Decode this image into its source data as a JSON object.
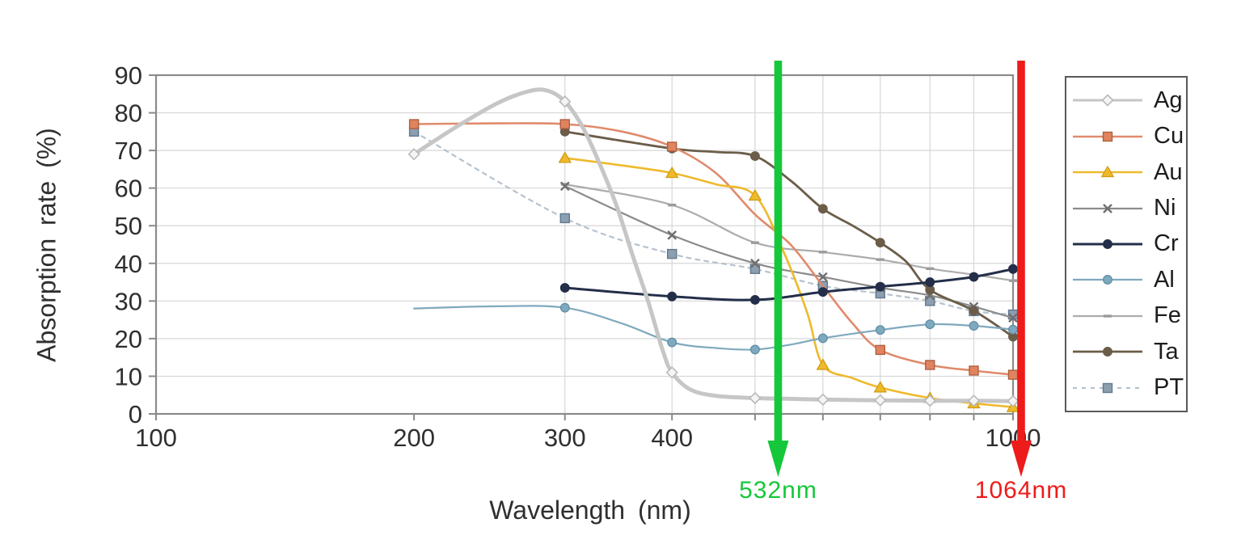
{
  "chart_data": {
    "type": "line",
    "title": "",
    "xlabel": "Wavelength (nm)",
    "ylabel": "Absorption rate (%)",
    "x_scale": "log",
    "x_range": [
      100,
      1000
    ],
    "y_range": [
      0,
      90
    ],
    "x_tick_labels": [
      100,
      200,
      300,
      400,
      1000
    ],
    "x_ticks": [
      100,
      200,
      300,
      400,
      500,
      600,
      700,
      800,
      900,
      1000
    ],
    "x_gridlines": [
      300,
      400,
      500,
      600,
      700,
      800,
      900
    ],
    "y_ticks": [
      0,
      10,
      20,
      30,
      40,
      50,
      60,
      70,
      80,
      90
    ],
    "grid": true,
    "legend_position": "right",
    "legend_items": [
      "Ag",
      "Cu",
      "Au",
      "Ni",
      "Cr",
      "Al",
      "Fe",
      "Ta",
      "PT"
    ],
    "series": [
      {
        "name": "Ag",
        "color": "#c6c6c6",
        "line_width": 5,
        "marker": "diamond",
        "marker_fill": "#f4f4f4",
        "marker_stroke": "#b9b9b9",
        "points": [
          [
            200,
            69
          ],
          [
            225,
            76.5
          ],
          [
            250,
            82.5
          ],
          [
            270,
            85.5
          ],
          [
            285,
            86
          ],
          [
            300,
            83
          ],
          [
            315,
            76
          ],
          [
            330,
            66
          ],
          [
            345,
            55
          ],
          [
            360,
            42
          ],
          [
            375,
            30
          ],
          [
            390,
            17
          ],
          [
            400,
            11
          ],
          [
            420,
            6.5
          ],
          [
            450,
            4.8
          ],
          [
            500,
            4.2
          ],
          [
            550,
            4
          ],
          [
            600,
            3.8
          ],
          [
            700,
            3.6
          ],
          [
            800,
            3.5
          ],
          [
            900,
            3.5
          ],
          [
            1000,
            3.4
          ]
        ],
        "marker_at": [
          200,
          300,
          400,
          500,
          600,
          700,
          800,
          900,
          1000
        ]
      },
      {
        "name": "Cu",
        "color": "#e08a6c",
        "line_width": 2.6,
        "marker": "square",
        "marker_fill": "#e0845f",
        "marker_stroke": "#b05f40",
        "points": [
          [
            200,
            77
          ],
          [
            250,
            77.2
          ],
          [
            300,
            77
          ],
          [
            350,
            75
          ],
          [
            400,
            71
          ],
          [
            450,
            64
          ],
          [
            500,
            53
          ],
          [
            550,
            45
          ],
          [
            600,
            34
          ],
          [
            650,
            24
          ],
          [
            700,
            17
          ],
          [
            800,
            13
          ],
          [
            900,
            11.5
          ],
          [
            1000,
            10.4
          ]
        ],
        "marker_at": [
          200,
          300,
          400,
          700,
          800,
          900,
          1000
        ]
      },
      {
        "name": "Au",
        "color": "#eeb92b",
        "line_width": 2.6,
        "marker": "triangle",
        "marker_fill": "#eeb92b",
        "marker_stroke": "#cf9a12",
        "points": [
          [
            300,
            68
          ],
          [
            350,
            66
          ],
          [
            400,
            64
          ],
          [
            450,
            61
          ],
          [
            500,
            58
          ],
          [
            540,
            43
          ],
          [
            575,
            27
          ],
          [
            600,
            13
          ],
          [
            650,
            9.5
          ],
          [
            700,
            7
          ],
          [
            800,
            4.2
          ],
          [
            900,
            2.8
          ],
          [
            1000,
            1.8
          ]
        ],
        "marker_at": [
          300,
          400,
          500,
          600,
          700,
          800,
          900,
          1000
        ]
      },
      {
        "name": "Ni",
        "color": "#8b8b8b",
        "line_width": 2.2,
        "marker": "x",
        "marker_fill": "none",
        "marker_stroke": "#6f6f6f",
        "points": [
          [
            300,
            60.5
          ],
          [
            400,
            47.5
          ],
          [
            500,
            40
          ],
          [
            600,
            36.4
          ],
          [
            700,
            33.5
          ],
          [
            800,
            31.5
          ],
          [
            900,
            28.5
          ],
          [
            1000,
            25.5
          ]
        ],
        "marker_at": [
          300,
          400,
          500,
          600,
          700,
          800,
          900,
          1000
        ]
      },
      {
        "name": "Cr",
        "color": "#232e49",
        "line_width": 3,
        "marker": "circle",
        "marker_fill": "#232e49",
        "marker_stroke": "#232e49",
        "points": [
          [
            300,
            33.5
          ],
          [
            400,
            31.2
          ],
          [
            500,
            30.3
          ],
          [
            600,
            32.4
          ],
          [
            700,
            33.8
          ],
          [
            800,
            35
          ],
          [
            900,
            36.4
          ],
          [
            1000,
            38.5
          ]
        ],
        "marker_at": [
          300,
          400,
          500,
          600,
          700,
          800,
          900,
          1000
        ]
      },
      {
        "name": "Al",
        "color": "#7fa9be",
        "line_width": 2.2,
        "marker": "circle",
        "marker_fill": "#7fa9be",
        "marker_stroke": "#608ea6",
        "points": [
          [
            200,
            28
          ],
          [
            250,
            28.6
          ],
          [
            300,
            28.2
          ],
          [
            350,
            24
          ],
          [
            400,
            19
          ],
          [
            450,
            17.5
          ],
          [
            500,
            17.1
          ],
          [
            550,
            18.4
          ],
          [
            600,
            20.1
          ],
          [
            700,
            22.3
          ],
          [
            800,
            23.8
          ],
          [
            900,
            23.4
          ],
          [
            1000,
            22.4
          ]
        ],
        "marker_at": [
          300,
          400,
          500,
          600,
          700,
          800,
          900,
          1000
        ]
      },
      {
        "name": "Fe",
        "color": "#acacac",
        "line_width": 2.2,
        "marker": "dash",
        "marker_fill": "#9b9b9b",
        "marker_stroke": "#9b9b9b",
        "points": [
          [
            300,
            61
          ],
          [
            400,
            55.5
          ],
          [
            500,
            45.5
          ],
          [
            600,
            43
          ],
          [
            700,
            41
          ],
          [
            800,
            38.6
          ],
          [
            900,
            37
          ],
          [
            1000,
            35.4
          ]
        ],
        "marker_at": [
          300,
          400,
          500,
          600,
          700,
          800,
          900,
          1000
        ]
      },
      {
        "name": "Ta",
        "color": "#6b5d49",
        "line_width": 2.8,
        "marker": "circle",
        "marker_fill": "#6b5d49",
        "marker_stroke": "#6b5d49",
        "points": [
          [
            300,
            75
          ],
          [
            400,
            70.5
          ],
          [
            450,
            69.6
          ],
          [
            500,
            68.5
          ],
          [
            550,
            62
          ],
          [
            600,
            54.5
          ],
          [
            650,
            50
          ],
          [
            700,
            45.5
          ],
          [
            750,
            40.5
          ],
          [
            800,
            33
          ],
          [
            900,
            27.4
          ],
          [
            1000,
            20.5
          ]
        ],
        "marker_at": [
          300,
          400,
          500,
          600,
          700,
          800,
          900,
          1000
        ]
      },
      {
        "name": "PT",
        "color": "#b6c2cd",
        "line_width": 2.2,
        "dash": "5 6",
        "marker": "square",
        "marker_fill": "#8c9fb0",
        "marker_stroke": "#62788e",
        "points": [
          [
            200,
            75
          ],
          [
            300,
            52
          ],
          [
            400,
            42.5
          ],
          [
            500,
            38.5
          ],
          [
            600,
            34
          ],
          [
            700,
            32
          ],
          [
            800,
            30
          ],
          [
            900,
            27.3
          ],
          [
            1000,
            26.4
          ]
        ],
        "marker_at": [
          200,
          300,
          400,
          500,
          600,
          700,
          800,
          900,
          1000
        ]
      }
    ],
    "annotations": {
      "green": {
        "label": "532nm",
        "wavelength_nm": 532,
        "color": "#15c73a"
      },
      "red": {
        "label": "1064nm",
        "wavelength_nm": 1064,
        "color": "#ee1b1b"
      }
    }
  },
  "style_colors": {
    "frame": "#8a8a8a",
    "gridline": "#d7d7d7",
    "tick_text": "#2f2f2f",
    "background": "#ffffff"
  }
}
